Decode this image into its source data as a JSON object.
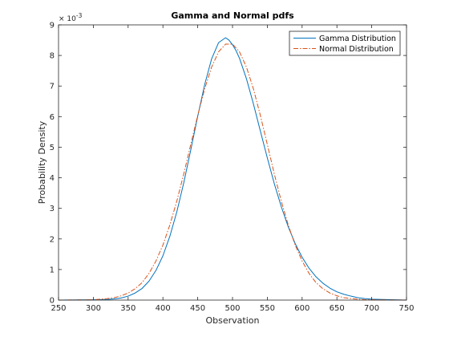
{
  "chart_data": {
    "type": "line",
    "title": "Gamma and Normal pdfs",
    "xlabel": "Observation",
    "ylabel": "Probability Density",
    "xlim": [
      250,
      750
    ],
    "ylim": [
      0,
      0.009
    ],
    "y_exponent_label": "× 10",
    "y_exponent_power": "-3",
    "xticks": [
      250,
      300,
      350,
      400,
      450,
      500,
      550,
      600,
      650,
      700,
      750
    ],
    "yticks": [
      0,
      1,
      2,
      3,
      4,
      5,
      6,
      7,
      8,
      9
    ],
    "grid": false,
    "legend_position": "top-right",
    "series": [
      {
        "name": "Gamma Distribution",
        "color": "#0072BD",
        "style": "solid",
        "x": [
          250,
          300,
          320,
          330,
          340,
          350,
          360,
          370,
          380,
          390,
          400,
          410,
          420,
          430,
          440,
          450,
          460,
          470,
          480,
          490,
          495,
          500,
          505,
          510,
          520,
          530,
          540,
          550,
          560,
          570,
          580,
          590,
          600,
          610,
          620,
          630,
          640,
          650,
          660,
          670,
          680,
          690,
          700,
          750
        ],
        "y": [
          0,
          1e-05,
          2e-05,
          4e-05,
          7e-05,
          0.00013,
          0.00023,
          0.00038,
          0.00062,
          0.00097,
          0.00145,
          0.00209,
          0.00289,
          0.00384,
          0.00491,
          0.00601,
          0.00705,
          0.00789,
          0.00842,
          0.00858,
          0.0085,
          0.00835,
          0.00816,
          0.00791,
          0.00724,
          0.00642,
          0.00553,
          0.00465,
          0.00381,
          0.00306,
          0.0024,
          0.00185,
          0.0014,
          0.00104,
          0.00076,
          0.00055,
          0.00039,
          0.00027,
          0.00019,
          0.00013,
          8e-05,
          5e-05,
          3e-05,
          0
        ]
      },
      {
        "name": "Normal Distribution",
        "color": "#D95319",
        "style": "dashdot",
        "x": [
          250,
          300,
          320,
          330,
          340,
          350,
          360,
          370,
          380,
          390,
          400,
          410,
          420,
          430,
          440,
          450,
          460,
          470,
          480,
          490,
          500,
          510,
          520,
          530,
          540,
          550,
          560,
          570,
          580,
          590,
          600,
          610,
          620,
          630,
          640,
          650,
          660,
          670,
          680,
          690,
          700,
          750
        ],
        "y": [
          0,
          1e-05,
          5e-05,
          8e-05,
          0.00014,
          0.00023,
          0.00037,
          0.00057,
          0.00087,
          0.00128,
          0.0018,
          0.00246,
          0.00324,
          0.00413,
          0.00509,
          0.00604,
          0.00691,
          0.00762,
          0.00812,
          0.00837,
          0.00837,
          0.00812,
          0.00762,
          0.00691,
          0.00604,
          0.00509,
          0.00413,
          0.00324,
          0.00246,
          0.0018,
          0.00128,
          0.00087,
          0.00057,
          0.00037,
          0.00023,
          0.00014,
          8e-05,
          5e-05,
          3e-05,
          1e-05,
          1e-05,
          0
        ]
      }
    ]
  }
}
